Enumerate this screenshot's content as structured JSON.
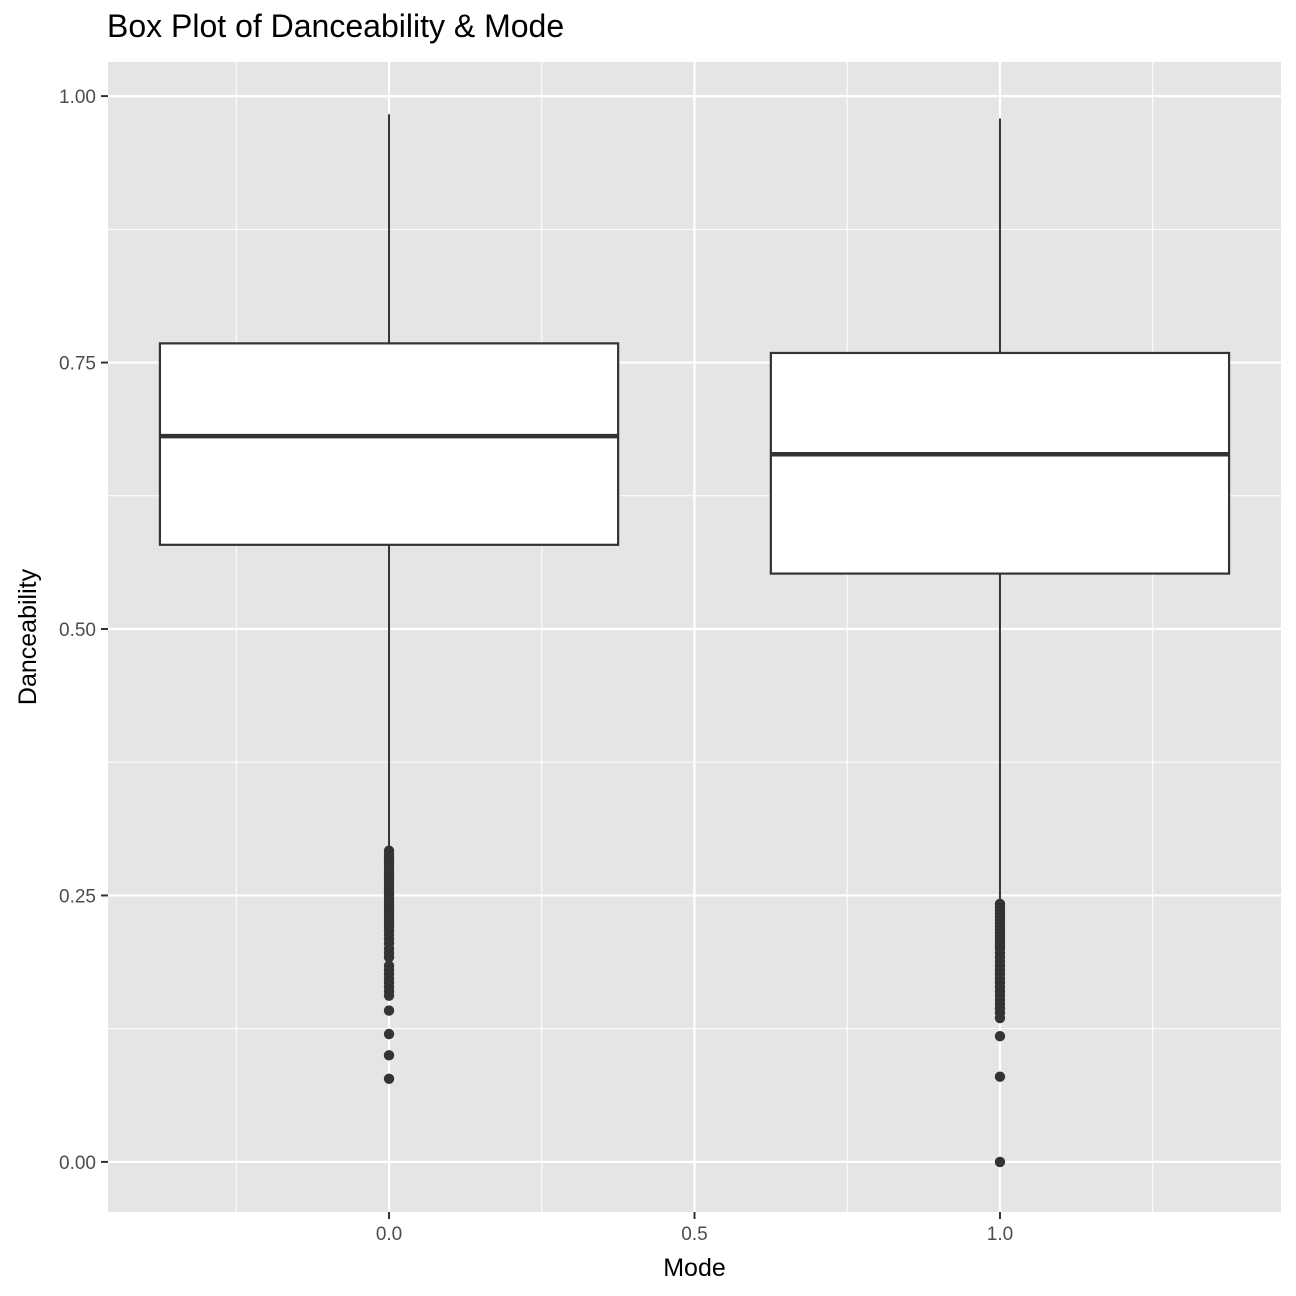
{
  "chart_data": {
    "type": "box",
    "title": "Box Plot of Danceability & Mode",
    "xlabel": "Mode",
    "ylabel": "Danceability",
    "xlim": [
      -0.46,
      1.46
    ],
    "ylim": [
      -0.047,
      1.032
    ],
    "x_ticks": [
      0.0,
      0.5,
      1.0
    ],
    "x_tick_labels": [
      "0.0",
      "0.5",
      "1.0"
    ],
    "y_ticks": [
      0.0,
      0.25,
      0.5,
      0.75,
      1.0
    ],
    "y_tick_labels": [
      "0.00",
      "0.25",
      "0.50",
      "0.75",
      "1.00"
    ],
    "grid": true,
    "box_width": 0.75,
    "boxes": [
      {
        "x": 0.0,
        "whisker_low": 0.295,
        "q1": 0.579,
        "median": 0.681,
        "q3": 0.768,
        "whisker_high": 0.983,
        "outliers": [
          0.292,
          0.289,
          0.286,
          0.283,
          0.28,
          0.277,
          0.274,
          0.271,
          0.268,
          0.265,
          0.262,
          0.259,
          0.256,
          0.253,
          0.25,
          0.247,
          0.244,
          0.241,
          0.238,
          0.235,
          0.232,
          0.229,
          0.226,
          0.223,
          0.22,
          0.217,
          0.213,
          0.209,
          0.205,
          0.2,
          0.196,
          0.192,
          0.184,
          0.18,
          0.176,
          0.172,
          0.168,
          0.164,
          0.16,
          0.156,
          0.142,
          0.12,
          0.1,
          0.078
        ]
      },
      {
        "x": 1.0,
        "whisker_low": 0.246,
        "q1": 0.552,
        "median": 0.664,
        "q3": 0.759,
        "whisker_high": 0.979,
        "outliers": [
          0.242,
          0.239,
          0.236,
          0.233,
          0.23,
          0.227,
          0.224,
          0.221,
          0.218,
          0.215,
          0.212,
          0.209,
          0.206,
          0.203,
          0.2,
          0.196,
          0.192,
          0.188,
          0.184,
          0.18,
          0.176,
          0.172,
          0.168,
          0.164,
          0.16,
          0.156,
          0.152,
          0.148,
          0.144,
          0.14,
          0.135,
          0.118,
          0.08,
          0.0
        ]
      }
    ]
  },
  "colors": {
    "panel_background": "#e5e5e5",
    "grid_line": "#ffffff",
    "box_fill": "#ffffff",
    "box_stroke": "#333333",
    "outlier": "#333333",
    "tick_label": "#4d4d4d",
    "title": "#000000"
  }
}
